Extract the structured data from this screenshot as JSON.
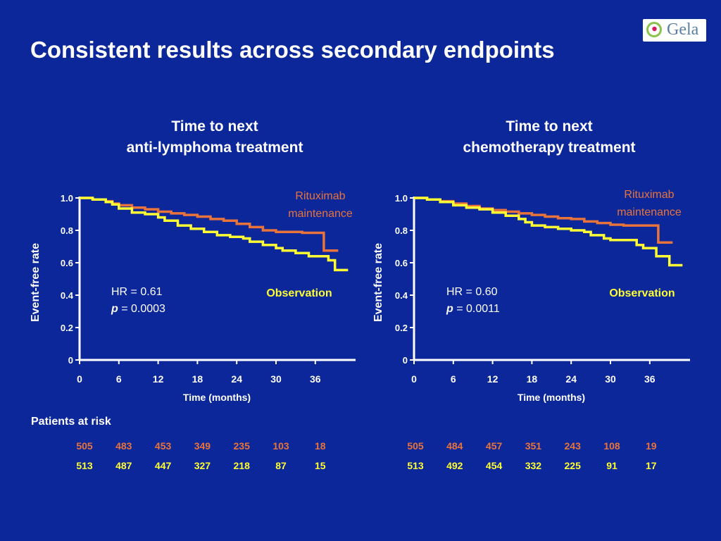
{
  "slide": {
    "title": "Consistent results across secondary endpoints"
  },
  "logo": {
    "text": "Gela"
  },
  "colors": {
    "background": "#0C2799",
    "rituximab": "#E8743B",
    "observation": "#FFFF33",
    "axis": "#FFFFFF"
  },
  "panels": [
    {
      "title_line1": "Time to next",
      "title_line2": "anti-lymphoma treatment",
      "hr_text": "HR = 0.61",
      "p_label": "p",
      "p_value": " = 0.0003"
    },
    {
      "title_line1": "Time to next",
      "title_line2": "chemotherapy treatment",
      "hr_text": "HR = 0.60",
      "p_label": "p",
      "p_value": " = 0.0011"
    }
  ],
  "risk": {
    "header": "Patients at risk",
    "tables": [
      {
        "rituximab": [
          "505",
          "483",
          "453",
          "349",
          "235",
          "103",
          "18"
        ],
        "observation": [
          "513",
          "487",
          "447",
          "327",
          "218",
          "87",
          "15"
        ]
      },
      {
        "rituximab": [
          "505",
          "484",
          "457",
          "351",
          "243",
          "108",
          "19"
        ],
        "observation": [
          "513",
          "492",
          "454",
          "332",
          "225",
          "91",
          "17"
        ]
      }
    ]
  },
  "chart_data": [
    {
      "type": "line",
      "title": "Time to next anti-lymphoma treatment",
      "xlabel": "Time (months)",
      "ylabel": "Event-free rate",
      "xlim": [
        0,
        42
      ],
      "ylim": [
        0,
        1
      ],
      "xticks": [
        "0",
        "6",
        "12",
        "18",
        "24",
        "30",
        "36"
      ],
      "yticks": [
        "0",
        "0.2",
        "0.4",
        "0.6",
        "0.8",
        "1.0"
      ],
      "grid": false,
      "series": [
        {
          "name": "Rituximab maintenance",
          "color": "#E8743B",
          "x": [
            0,
            2,
            4,
            5,
            6,
            8,
            10,
            12,
            14,
            16,
            18,
            20,
            22,
            24,
            26,
            28,
            30,
            32,
            34,
            36,
            37,
            37.3,
            39.5
          ],
          "y": [
            1.0,
            0.99,
            0.98,
            0.965,
            0.955,
            0.94,
            0.93,
            0.915,
            0.905,
            0.895,
            0.885,
            0.87,
            0.86,
            0.84,
            0.82,
            0.8,
            0.79,
            0.79,
            0.785,
            0.785,
            0.785,
            0.675,
            0.675
          ]
        },
        {
          "name": "Observation",
          "color": "#FFFF33",
          "x": [
            0,
            2,
            4,
            5,
            6,
            8,
            10,
            12,
            13,
            15,
            17,
            19,
            21,
            23,
            25,
            26,
            28,
            30,
            31,
            33,
            35,
            36,
            38,
            39,
            41
          ],
          "y": [
            1.0,
            0.99,
            0.975,
            0.96,
            0.935,
            0.91,
            0.9,
            0.88,
            0.86,
            0.83,
            0.81,
            0.79,
            0.77,
            0.76,
            0.75,
            0.73,
            0.71,
            0.69,
            0.675,
            0.66,
            0.64,
            0.64,
            0.615,
            0.555,
            0.555
          ]
        }
      ],
      "annotations": [
        "HR = 0.61",
        "p = 0.0003"
      ]
    },
    {
      "type": "line",
      "title": "Time to next chemotherapy treatment",
      "xlabel": "Time (months)",
      "ylabel": "Event-free rate",
      "xlim": [
        0,
        42
      ],
      "ylim": [
        0,
        1
      ],
      "xticks": [
        "0",
        "6",
        "12",
        "18",
        "24",
        "30",
        "36"
      ],
      "yticks": [
        "0",
        "0.2",
        "0.4",
        "0.6",
        "0.8",
        "1.0"
      ],
      "grid": false,
      "series": [
        {
          "name": "Rituximab maintenance",
          "color": "#E8743B",
          "x": [
            0,
            2,
            4,
            6,
            8,
            10,
            12,
            14,
            16,
            18,
            20,
            22,
            24,
            26,
            28,
            30,
            32,
            34,
            37,
            37.3,
            39.5
          ],
          "y": [
            1.0,
            0.99,
            0.98,
            0.965,
            0.95,
            0.935,
            0.925,
            0.915,
            0.905,
            0.895,
            0.885,
            0.875,
            0.87,
            0.855,
            0.845,
            0.835,
            0.83,
            0.83,
            0.83,
            0.725,
            0.725
          ]
        },
        {
          "name": "Observation",
          "color": "#FFFF33",
          "x": [
            0,
            2,
            4,
            6,
            8,
            10,
            12,
            14,
            16,
            17,
            18,
            20,
            22,
            24,
            26,
            27,
            29,
            30,
            32,
            34,
            35,
            36,
            37,
            38,
            39,
            41
          ],
          "y": [
            1.0,
            0.99,
            0.975,
            0.955,
            0.94,
            0.93,
            0.91,
            0.89,
            0.87,
            0.85,
            0.83,
            0.82,
            0.81,
            0.8,
            0.79,
            0.77,
            0.75,
            0.74,
            0.74,
            0.71,
            0.69,
            0.69,
            0.64,
            0.64,
            0.585,
            0.585
          ]
        }
      ],
      "annotations": [
        "HR = 0.60",
        "p = 0.0011"
      ]
    }
  ]
}
